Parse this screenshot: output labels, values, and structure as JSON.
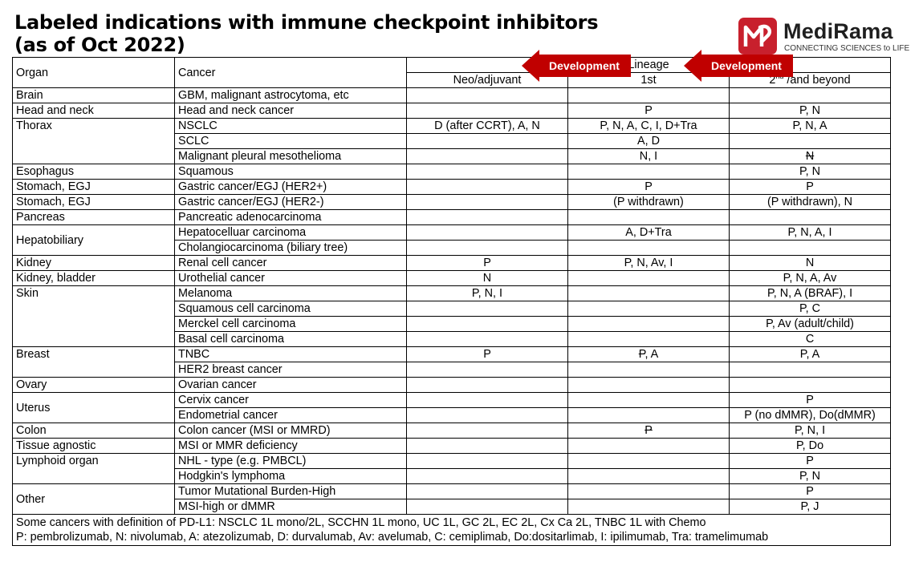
{
  "title_line1": "Labeled indications with immune checkpoint inhibitors",
  "title_line2": "(as of Oct 2022)",
  "logo": {
    "name": "MediRama",
    "tagline": "CONNECTING SCIENCES to LIFE",
    "icon": "medirama-logo-icon",
    "brand_color": "#c8202d"
  },
  "arrows": {
    "label": "Development",
    "color": "#c00000"
  },
  "headers": {
    "organ": "Organ",
    "cancer": "Cancer",
    "lineage": "Lineage",
    "neo": "Neo/adjuvant",
    "first": "1st",
    "second_sup": "nd",
    "second_base": "2",
    "second_rest": " /and beyond"
  },
  "rows": [
    {
      "organ": "Brain",
      "cancer": "GBM, malignant astrocytoma, etc",
      "neo": "",
      "first": "",
      "second": ""
    },
    {
      "organ": "Head and neck",
      "cancer": "Head and neck cancer",
      "neo": "",
      "first": "P",
      "second": "P, N"
    },
    {
      "organ": "Thorax",
      "cancer": "NSCLC",
      "neo": "D (after CCRT), A, N",
      "first": "P, N, A, C, I, D+Tra",
      "second": "P, N, A"
    },
    {
      "organ": "",
      "cancer": "SCLC",
      "neo": "",
      "first": "A, D",
      "second": ""
    },
    {
      "organ": "",
      "cancer": "Malignant pleural mesothelioma",
      "neo": "",
      "first": "N, I",
      "second": "N"
    },
    {
      "organ": "Esophagus",
      "cancer": "Squamous",
      "neo": "",
      "first": "",
      "second": "P, N"
    },
    {
      "organ": "Stomach, EGJ",
      "cancer": "Gastric cancer/EGJ (HER2+)",
      "neo": "",
      "first": "P",
      "second": "P"
    },
    {
      "organ": "Stomach, EGJ",
      "cancer": "Gastric cancer/EGJ (HER2-)",
      "neo": "",
      "first": "(P withdrawn)",
      "second": "(P withdrawn), N"
    },
    {
      "organ": "Pancreas",
      "cancer": "Pancreatic adenocarcinoma",
      "neo": "",
      "first": "",
      "second": ""
    },
    {
      "organ": "Hepatobiliary",
      "cancer": "Hepatocelluar carcinoma",
      "neo": "",
      "first": "A, D+Tra",
      "second": "P, N, A, I"
    },
    {
      "organ": "",
      "cancer": "Cholangiocarcinoma (biliary tree)",
      "neo": "",
      "first": "",
      "second": ""
    },
    {
      "organ": "Kidney",
      "cancer": "Renal cell cancer",
      "neo": "P",
      "first": "P, N, Av, I",
      "second": "N"
    },
    {
      "organ": "Kidney, bladder",
      "cancer": "Urothelial cancer",
      "neo": "N",
      "first": "",
      "second": "P, N, A, Av"
    },
    {
      "organ": "Skin",
      "cancer": "Melanoma",
      "neo": "P, N, I",
      "first": "",
      "second": "P, N, A (BRAF), I"
    },
    {
      "organ": "",
      "cancer": "Squamous cell carcinoma",
      "neo": "",
      "first": "",
      "second": "P, C"
    },
    {
      "organ": "",
      "cancer": "Merckel cell carcinoma",
      "neo": "",
      "first": "",
      "second": "P, Av (adult/child)"
    },
    {
      "organ": "",
      "cancer": "Basal cell carcinoma",
      "neo": "",
      "first": "",
      "second": "C"
    },
    {
      "organ": "Breast",
      "cancer": "TNBC",
      "neo": "P",
      "first_strike": "P",
      "first": ", A",
      "second": "P, A"
    },
    {
      "organ": "",
      "cancer": "HER2 breast cancer",
      "neo": "",
      "first": "",
      "second": ""
    },
    {
      "organ": "Ovary",
      "cancer": "Ovarian cancer",
      "neo": "",
      "first": "",
      "second": ""
    },
    {
      "organ": "Uterus",
      "cancer": "Cervix cancer",
      "neo": "",
      "first": "",
      "second": "P"
    },
    {
      "organ": "",
      "cancer": "Endometrial cancer",
      "neo": "",
      "first": "",
      "second": "P (no dMMR), Do(dMMR)"
    },
    {
      "organ": "Colon",
      "cancer": "Colon cancer (MSI or MMRD)",
      "neo": "",
      "first_strike": "P",
      "first": "",
      "second": "P, N, I"
    },
    {
      "organ": "Tissue agnostic",
      "cancer": "MSI or MMR deficiency",
      "neo": "",
      "first": "",
      "second": "P, Do"
    },
    {
      "organ": "Lymphoid organ",
      "cancer": "NHL - type (e.g. PMBCL)",
      "neo": "",
      "first": "",
      "second": "P"
    },
    {
      "organ": "",
      "cancer": "Hodgkin's lymphoma",
      "neo": "",
      "first": "",
      "second": "P, N"
    },
    {
      "organ": "Other",
      "cancer": "Tumor Mutational Burden-High",
      "neo": "",
      "first": "",
      "second": "P"
    },
    {
      "organ": "",
      "cancer": "MSI-high or dMMR",
      "neo": "",
      "first": "",
      "second": "P, J"
    }
  ],
  "footer_line1": "Some cancers with definition of PD-L1: NSCLC 1L mono/2L, SCCHN 1L mono, UC 1L, GC 2L, EC 2L, Cx Ca 2L, TNBC 1L with Chemo",
  "footer_line2": "P: pembrolizumab, N: nivolumab, A: atezolizumab, D: durvalumab, Av: avelumab, C: cemiplimab, Do:dositarlimab, I: ipilimumab, Tra: tramelimumab"
}
